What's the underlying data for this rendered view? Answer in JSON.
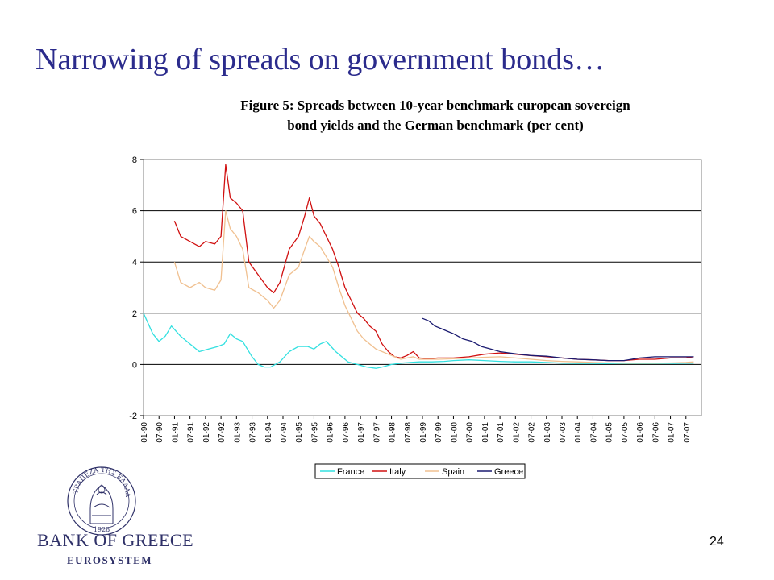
{
  "slide": {
    "title": "Narrowing of spreads on government bonds…",
    "page_number": "24"
  },
  "logo": {
    "bank_name": "BANK OF GREECE",
    "subtitle": "EUROSYSTEM",
    "seal_text": "ΤΡΑΠΕΖΑ ΤΗΣ ΕΛΛΑΔΟΣ",
    "seal_year": "1928",
    "color": "#2f3168"
  },
  "chart_data": {
    "type": "line",
    "title_line1": "Figure 5: Spreads between 10-year benchmark european sovereign",
    "title_line2": "bond yields and the German benchmark (per cent)",
    "xlabel": "",
    "ylabel": "",
    "ylim": [
      -2,
      8
    ],
    "yticks": [
      "-2",
      "0",
      "2",
      "4",
      "6",
      "8"
    ],
    "xticks": [
      "01-90",
      "07-90",
      "01-91",
      "07-91",
      "01-92",
      "07-92",
      "01-93",
      "07-93",
      "01-94",
      "07-94",
      "01-95",
      "07-95",
      "01-96",
      "07-96",
      "01-97",
      "07-97",
      "01-98",
      "07-98",
      "01-99",
      "07-99",
      "01-00",
      "07-00",
      "01-01",
      "07-01",
      "01-02",
      "07-02",
      "01-03",
      "07-03",
      "01-04",
      "07-04",
      "01-05",
      "07-05",
      "01-06",
      "07-06",
      "01-07",
      "07-07"
    ],
    "grid": "horizontal",
    "legend_position": "bottom",
    "series": [
      {
        "name": "France",
        "color": "#33e0e0",
        "x": [
          1990.0,
          1990.3,
          1990.5,
          1990.7,
          1990.9,
          1991.2,
          1991.5,
          1991.8,
          1992.1,
          1992.4,
          1992.6,
          1992.8,
          1993.0,
          1993.2,
          1993.5,
          1993.7,
          1993.9,
          1994.1,
          1994.4,
          1994.7,
          1995.0,
          1995.3,
          1995.5,
          1995.7,
          1995.9,
          1996.2,
          1996.4,
          1996.6,
          1996.9,
          1997.2,
          1997.5,
          1997.7,
          1998.0,
          1998.3,
          1998.6,
          1998.9,
          1999.3,
          1999.7,
          2000.0,
          2000.5,
          2001.0,
          2001.5,
          2002.0,
          2002.5,
          2003.0,
          2003.5,
          2004.0,
          2004.5,
          2005.0,
          2005.5,
          2006.0,
          2006.5,
          2007.0,
          2007.5,
          2007.75
        ],
        "y": [
          2.0,
          1.2,
          0.9,
          1.1,
          1.5,
          1.1,
          0.8,
          0.5,
          0.6,
          0.7,
          0.8,
          1.2,
          1.0,
          0.9,
          0.3,
          0.0,
          -0.1,
          -0.1,
          0.1,
          0.5,
          0.7,
          0.7,
          0.6,
          0.8,
          0.9,
          0.5,
          0.3,
          0.1,
          0.0,
          -0.1,
          -0.15,
          -0.1,
          0.0,
          0.05,
          0.08,
          0.1,
          0.1,
          0.12,
          0.15,
          0.18,
          0.15,
          0.12,
          0.1,
          0.1,
          0.08,
          0.05,
          0.04,
          0.04,
          0.03,
          0.03,
          0.03,
          0.03,
          0.04,
          0.05,
          0.05
        ]
      },
      {
        "name": "Italy",
        "color": "#d01010",
        "x": [
          1991.0,
          1991.2,
          1991.5,
          1991.8,
          1992.0,
          1992.3,
          1992.5,
          1992.65,
          1992.8,
          1993.0,
          1993.2,
          1993.4,
          1993.7,
          1994.0,
          1994.2,
          1994.4,
          1994.7,
          1995.0,
          1995.2,
          1995.35,
          1995.5,
          1995.7,
          1995.9,
          1996.1,
          1996.3,
          1996.5,
          1996.7,
          1996.9,
          1997.1,
          1997.3,
          1997.5,
          1997.7,
          1997.9,
          1998.1,
          1998.3,
          1998.5,
          1998.7,
          1998.9,
          1999.2,
          1999.5,
          2000.0,
          2000.5,
          2001.0,
          2001.5,
          2002.0,
          2002.5,
          2003.0,
          2003.5,
          2004.0,
          2004.5,
          2005.0,
          2005.5,
          2006.0,
          2006.5,
          2007.0,
          2007.5,
          2007.75
        ],
        "y": [
          5.6,
          5.0,
          4.8,
          4.6,
          4.8,
          4.7,
          5.0,
          7.8,
          6.5,
          6.3,
          6.0,
          4.0,
          3.5,
          3.0,
          2.8,
          3.2,
          4.5,
          5.0,
          5.8,
          6.5,
          5.8,
          5.5,
          5.0,
          4.5,
          3.8,
          3.0,
          2.5,
          2.0,
          1.8,
          1.5,
          1.3,
          0.8,
          0.5,
          0.3,
          0.25,
          0.35,
          0.5,
          0.25,
          0.22,
          0.25,
          0.25,
          0.3,
          0.4,
          0.45,
          0.4,
          0.35,
          0.3,
          0.25,
          0.2,
          0.18,
          0.15,
          0.15,
          0.2,
          0.2,
          0.25,
          0.25,
          0.3
        ]
      },
      {
        "name": "Spain",
        "color": "#f0c090",
        "x": [
          1991.0,
          1991.2,
          1991.5,
          1991.8,
          1992.0,
          1992.3,
          1992.5,
          1992.65,
          1992.8,
          1993.0,
          1993.2,
          1993.4,
          1993.7,
          1994.0,
          1994.2,
          1994.4,
          1994.7,
          1995.0,
          1995.2,
          1995.35,
          1995.5,
          1995.7,
          1995.9,
          1996.1,
          1996.3,
          1996.5,
          1996.7,
          1996.9,
          1997.1,
          1997.3,
          1997.5,
          1997.7,
          1997.9,
          1998.1,
          1998.3,
          1998.5,
          1998.7,
          1998.9,
          1999.2,
          1999.5,
          2000.0,
          2000.5,
          2001.0,
          2001.5,
          2002.0,
          2002.5,
          2003.0,
          2003.5,
          2004.0,
          2004.5,
          2005.0,
          2005.5,
          2006.0,
          2006.5,
          2007.0,
          2007.5,
          2007.75
        ],
        "y": [
          4.0,
          3.2,
          3.0,
          3.2,
          3.0,
          2.9,
          3.3,
          6.0,
          5.3,
          5.0,
          4.5,
          3.0,
          2.8,
          2.5,
          2.2,
          2.5,
          3.5,
          3.8,
          4.5,
          5.0,
          4.8,
          4.6,
          4.2,
          3.8,
          3.0,
          2.3,
          1.8,
          1.3,
          1.0,
          0.8,
          0.6,
          0.5,
          0.4,
          0.3,
          0.2,
          0.25,
          0.3,
          0.2,
          0.2,
          0.2,
          0.22,
          0.25,
          0.28,
          0.3,
          0.25,
          0.2,
          0.15,
          0.12,
          0.1,
          0.08,
          0.06,
          0.05,
          0.05,
          0.05,
          0.06,
          0.08,
          0.1
        ]
      },
      {
        "name": "Greece",
        "color": "#1a1a70",
        "x": [
          1999.0,
          1999.2,
          1999.4,
          1999.6,
          1999.8,
          2000.0,
          2000.3,
          2000.6,
          2000.9,
          2001.2,
          2001.5,
          2001.8,
          2002.1,
          2002.5,
          2003.0,
          2003.5,
          2004.0,
          2004.5,
          2005.0,
          2005.5,
          2006.0,
          2006.5,
          2007.0,
          2007.5,
          2007.75
        ],
        "y": [
          1.8,
          1.7,
          1.5,
          1.4,
          1.3,
          1.2,
          1.0,
          0.9,
          0.7,
          0.6,
          0.5,
          0.45,
          0.4,
          0.35,
          0.32,
          0.25,
          0.2,
          0.18,
          0.15,
          0.15,
          0.25,
          0.3,
          0.3,
          0.3,
          0.3
        ]
      }
    ]
  }
}
